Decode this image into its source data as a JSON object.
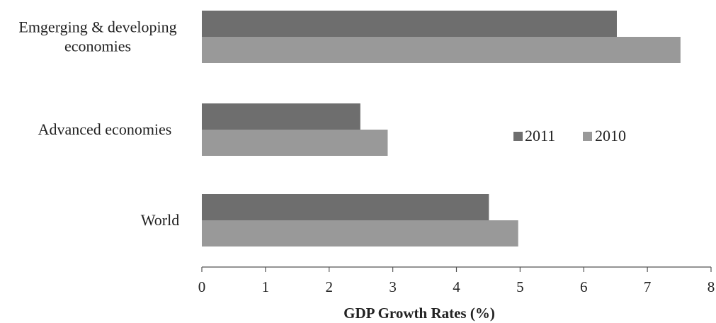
{
  "chart_data": {
    "type": "bar",
    "orientation": "horizontal",
    "categories": [
      [
        "Emgerging & developing",
        "economies"
      ],
      [
        "Advanced economies"
      ],
      [
        "World"
      ]
    ],
    "series": [
      {
        "name": "2011",
        "values": [
          6.52,
          2.49,
          4.51
        ],
        "color": "#6e6e6e"
      },
      {
        "name": "2010",
        "values": [
          7.52,
          2.92,
          4.97
        ],
        "color": "#999999"
      }
    ],
    "xlabel": "GDP Growth Rates (%)",
    "ylabel": "",
    "xlim": [
      0,
      8
    ],
    "xticks": [
      "0",
      "1",
      "2",
      "3",
      "4",
      "5",
      "6",
      "7",
      "8"
    ],
    "grid": false,
    "legend_position": "center-right"
  }
}
